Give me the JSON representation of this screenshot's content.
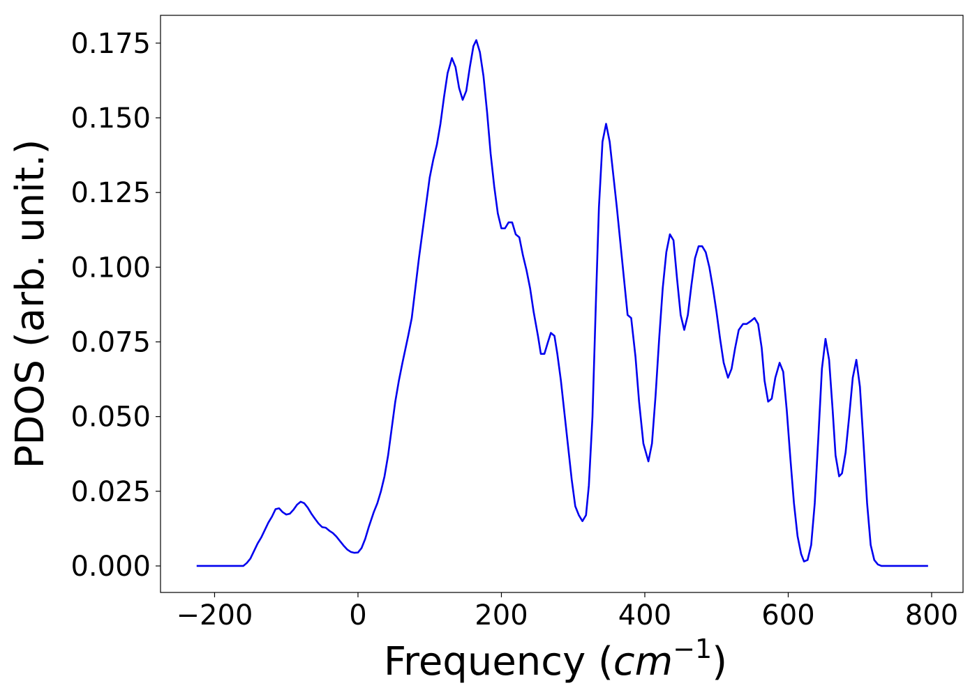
{
  "chart_data": {
    "type": "line",
    "y_label": "PDOS (arb. unit.)",
    "x_label": {
      "text": "Frequency (",
      "math": "cm",
      "sup": "−1",
      "close": ")"
    },
    "xlim": [
      -275.4,
      843.8
    ],
    "ylim": [
      -0.00887,
      0.1843
    ],
    "xticks": [
      {
        "value": -200,
        "label": "−200"
      },
      0,
      200,
      400,
      600,
      800
    ],
    "yticks": [
      {
        "value": 0,
        "label": "0.000"
      },
      {
        "value": 0.025,
        "label": "0.025"
      },
      {
        "value": 0.05,
        "label": "0.050"
      },
      {
        "value": 0.075,
        "label": "0.075"
      },
      {
        "value": 0.1,
        "label": "0.100"
      },
      {
        "value": 0.125,
        "label": "0.125"
      },
      {
        "value": 0.15,
        "label": "0.150"
      },
      {
        "value": 0.175,
        "label": "0.175"
      }
    ],
    "series": [
      {
        "color": "#0000ee",
        "x": [
          -225,
          -160,
          -155,
          -150,
          -145,
          -140,
          -135,
          -130,
          -125,
          -120,
          -115,
          -110,
          -105,
          -100,
          -95,
          -90,
          -85,
          -80,
          -75,
          -70,
          -65,
          -60,
          -55,
          -50,
          -45,
          -40,
          -35,
          -30,
          -25,
          -20,
          -15,
          -10,
          -5,
          0,
          5,
          10,
          15,
          22,
          27,
          32,
          37,
          42,
          47,
          52,
          57,
          62,
          70,
          75,
          80,
          85,
          90,
          95,
          100,
          105,
          110,
          115,
          120,
          125,
          131,
          136,
          141,
          146,
          151,
          156,
          161,
          165,
          170,
          175,
          180,
          185,
          190,
          195,
          200,
          205,
          210,
          215,
          220,
          225,
          230,
          235,
          240,
          245,
          251,
          255,
          260,
          265,
          269,
          274,
          278,
          283,
          288,
          293,
          298,
          303,
          308,
          313,
          318,
          322,
          327,
          332,
          336,
          341,
          346,
          351,
          356,
          361,
          366,
          371,
          376,
          381,
          387,
          392,
          398,
          405,
          410,
          415,
          420,
          425,
          430,
          435,
          440,
          445,
          450,
          455,
          460,
          465,
          470,
          475,
          480,
          485,
          490,
          495,
          500,
          505,
          510,
          516,
          521,
          526,
          531,
          537,
          542,
          548,
          553,
          558,
          563,
          567,
          572,
          577,
          582,
          588,
          593,
          598,
          603,
          608,
          613,
          618,
          622,
          627,
          632,
          637,
          642,
          647,
          652,
          657,
          662,
          666,
          671,
          675,
          680,
          685,
          690,
          695,
          700,
          705,
          710,
          715,
          720,
          725,
          730,
          795
        ],
        "values": [
          0,
          0,
          0.001,
          0.0025,
          0.005,
          0.0075,
          0.0095,
          0.012,
          0.0145,
          0.0165,
          0.019,
          0.0193,
          0.018,
          0.0172,
          0.0175,
          0.0188,
          0.0205,
          0.0215,
          0.021,
          0.0195,
          0.0175,
          0.0158,
          0.0142,
          0.013,
          0.0128,
          0.0118,
          0.011,
          0.0098,
          0.0083,
          0.0068,
          0.0055,
          0.0047,
          0.0044,
          0.0045,
          0.006,
          0.009,
          0.013,
          0.018,
          0.021,
          0.025,
          0.03,
          0.037,
          0.046,
          0.055,
          0.062,
          0.068,
          0.077,
          0.083,
          0.093,
          0.103,
          0.112,
          0.121,
          0.13,
          0.136,
          0.141,
          0.148,
          0.157,
          0.165,
          0.17,
          0.167,
          0.16,
          0.156,
          0.159,
          0.167,
          0.174,
          0.176,
          0.172,
          0.164,
          0.152,
          0.138,
          0.127,
          0.118,
          0.113,
          0.113,
          0.115,
          0.115,
          0.111,
          0.11,
          0.104,
          0.099,
          0.093,
          0.085,
          0.077,
          0.071,
          0.071,
          0.075,
          0.078,
          0.077,
          0.071,
          0.062,
          0.051,
          0.04,
          0.029,
          0.02,
          0.017,
          0.015,
          0.017,
          0.027,
          0.05,
          0.09,
          0.12,
          0.142,
          0.148,
          0.142,
          0.131,
          0.12,
          0.108,
          0.096,
          0.084,
          0.083,
          0.07,
          0.055,
          0.041,
          0.035,
          0.041,
          0.057,
          0.076,
          0.093,
          0.105,
          0.111,
          0.109,
          0.096,
          0.084,
          0.079,
          0.084,
          0.094,
          0.103,
          0.107,
          0.107,
          0.105,
          0.1,
          0.093,
          0.085,
          0.076,
          0.068,
          0.063,
          0.066,
          0.073,
          0.079,
          0.081,
          0.081,
          0.082,
          0.083,
          0.081,
          0.073,
          0.062,
          0.055,
          0.056,
          0.063,
          0.068,
          0.065,
          0.052,
          0.036,
          0.021,
          0.01,
          0.004,
          0.0015,
          0.002,
          0.007,
          0.021,
          0.043,
          0.066,
          0.076,
          0.069,
          0.052,
          0.037,
          0.03,
          0.031,
          0.038,
          0.05,
          0.063,
          0.069,
          0.06,
          0.041,
          0.021,
          0.007,
          0.002,
          0.0005,
          0,
          0
        ]
      }
    ]
  }
}
